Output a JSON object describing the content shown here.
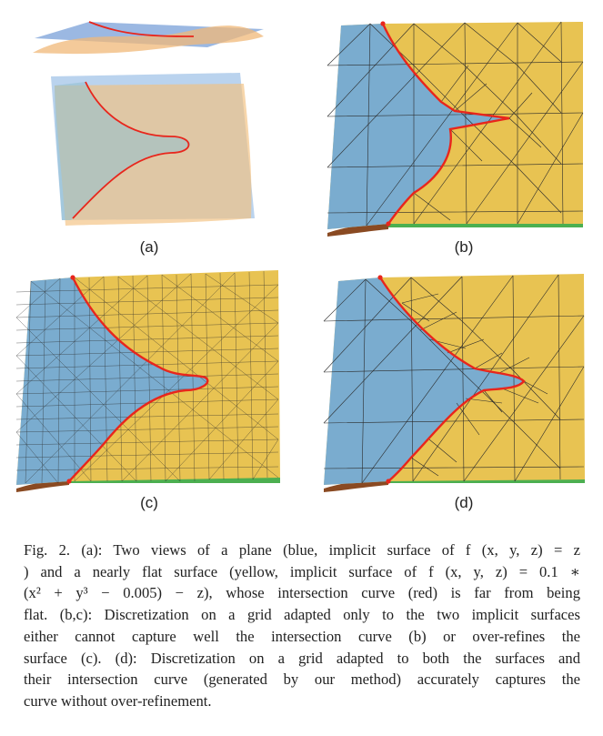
{
  "figure": {
    "panels": [
      {
        "id": "a",
        "label": "(a)"
      },
      {
        "id": "b",
        "label": "(b)"
      },
      {
        "id": "c",
        "label": "(c)"
      },
      {
        "id": "d",
        "label": "(d)"
      }
    ],
    "colors": {
      "blue_surface": "#7aaccf",
      "yellow_surface": "#e8c352",
      "intersection_curve": "#e8261c",
      "mesh_lines": "#2a2a2a",
      "green_edge": "#4caf50",
      "brown_edge": "#8a4a22"
    },
    "caption": {
      "lines": [
        "Fig. 2.  (a): Two views of a plane (blue, implicit surface of f (x, y, z) = z",
        ") and a nearly flat surface (yellow, implicit surface of f (x, y, z) = 0.1 ∗",
        "(x² + y³ − 0.005) − z), whose intersection curve (red) is far from being",
        "flat. (b,c): Discretization on a grid adapted only to the two implicit surfaces",
        "either cannot capture well the intersection curve (b) or over-refines the",
        "surface (c). (d): Discretization on a grid adapted to both the surfaces and",
        "their intersection curve (generated by our method) accurately captures the",
        "curve without over-refinement."
      ]
    }
  }
}
